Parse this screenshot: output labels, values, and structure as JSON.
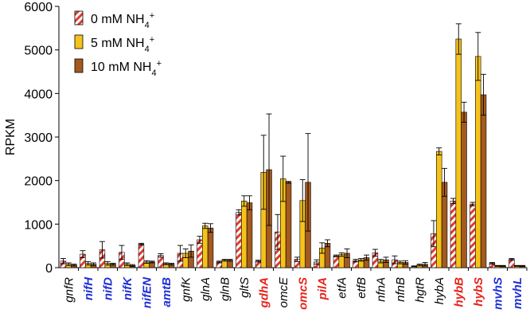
{
  "chart_data": {
    "type": "bar",
    "title": "",
    "xlabel": "",
    "ylabel": "RPKM",
    "ylim": [
      0,
      6000
    ],
    "yticks": [
      0,
      1000,
      2000,
      3000,
      4000,
      5000,
      6000
    ],
    "grid": false,
    "legend_position": "top-left",
    "categories": [
      "gnfR",
      "nifH",
      "nifD",
      "nifK",
      "nifEN",
      "amtB",
      "gnfK",
      "glnA",
      "glnB",
      "gltS",
      "gdhA",
      "omcE",
      "omcS",
      "pilA",
      "etfA",
      "etfB",
      "nfnA",
      "nfnB",
      "hgtR",
      "hybA",
      "hybB",
      "hybS",
      "mvhS",
      "mvhL"
    ],
    "category_styles": [
      "italic",
      "blue-bold",
      "blue-bold",
      "blue-bold",
      "blue-bold",
      "blue-bold",
      "italic",
      "italic",
      "italic",
      "italic",
      "red-bold",
      "italic",
      "red-bold",
      "red-bold",
      "italic",
      "italic",
      "italic",
      "italic",
      "italic",
      "italic",
      "red-bold",
      "red-bold",
      "blue-bold",
      "blue-bold"
    ],
    "series": [
      {
        "name": "0 mM NH4+",
        "legend_main": "0 mM NH",
        "legend_sub": "4",
        "legend_sup": "+",
        "fill": "hatched-red",
        "values": [
          150,
          310,
          410,
          350,
          540,
          280,
          330,
          640,
          130,
          1270,
          150,
          820,
          190,
          130,
          270,
          160,
          340,
          180,
          30,
          780,
          1530,
          1460,
          100,
          190
        ],
        "errors": [
          60,
          80,
          190,
          160,
          20,
          40,
          180,
          80,
          20,
          60,
          20,
          400,
          50,
          50,
          20,
          30,
          80,
          90,
          10,
          300,
          60,
          40,
          20,
          20
        ]
      },
      {
        "name": "5 mM NH4+",
        "legend_main": "5 mM NH",
        "legend_sub": "4",
        "legend_sup": "+",
        "fill": "#f5c21b",
        "values": [
          80,
          100,
          100,
          80,
          130,
          90,
          330,
          960,
          170,
          1530,
          2190,
          2040,
          1540,
          450,
          300,
          180,
          150,
          120,
          60,
          2670,
          5250,
          4850,
          40,
          40
        ],
        "errors": [
          30,
          40,
          40,
          30,
          30,
          20,
          100,
          60,
          20,
          120,
          850,
          520,
          480,
          120,
          40,
          30,
          40,
          30,
          20,
          80,
          350,
          550,
          10,
          10
        ]
      },
      {
        "name": "10 mM NH4+",
        "legend_main": "10 mM NH",
        "legend_sub": "4",
        "legend_sup": "+",
        "fill": "#a45a1e",
        "values": [
          60,
          80,
          80,
          50,
          130,
          80,
          380,
          910,
          170,
          1490,
          2250,
          1960,
          1960,
          560,
          330,
          230,
          180,
          120,
          80,
          1960,
          3570,
          3970,
          40,
          40
        ],
        "errors": [
          20,
          30,
          20,
          20,
          20,
          20,
          140,
          100,
          20,
          160,
          1280,
          20,
          1120,
          80,
          100,
          60,
          60,
          40,
          40,
          320,
          230,
          470,
          10,
          10
        ]
      }
    ]
  }
}
